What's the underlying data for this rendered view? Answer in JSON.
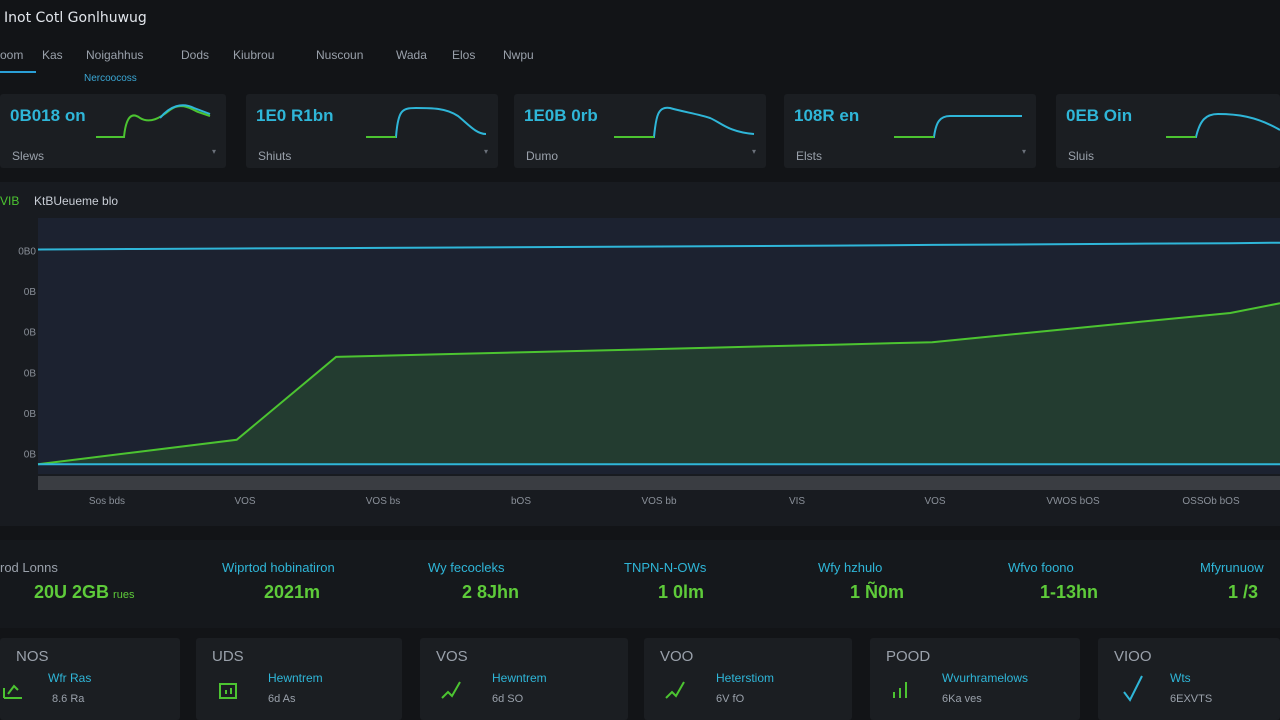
{
  "app": {
    "title": "Inot Cotl Gonlhuwug"
  },
  "nav": {
    "items": [
      "oom",
      "Kas",
      "Noigahhus",
      "Dods",
      "Kiubrou",
      "Nuscoun",
      "Wada",
      "Elos",
      "Nwpu"
    ],
    "sub_label": "Nercoocoss"
  },
  "kpis": [
    {
      "value": "0B018 on",
      "label": "Slews"
    },
    {
      "value": "1E0 R1bn",
      "label": "Shiuts"
    },
    {
      "value": "1E0B 0rb",
      "label": "Dumo"
    },
    {
      "value": "108R en",
      "label": "Elsts"
    },
    {
      "value": "0EB Oin",
      "label": "Sluis"
    }
  ],
  "chart": {
    "legend_tag": "VIB",
    "heading": "KtBUeueme blo"
  },
  "chart_data": {
    "type": "line",
    "title": "KtBUeueme blo",
    "xlabel": "",
    "ylabel": "",
    "y_tick_labels": [
      "0B0",
      "0B",
      "0B",
      "0B",
      "0B",
      "0B"
    ],
    "x_tick_labels": [
      "Sos bds",
      "VOS",
      "VOS bs",
      "bOS",
      "VOS bb",
      "VIS",
      "VOS",
      "VWOS bOS",
      "OSSOb bOS"
    ],
    "ylim": [
      0,
      100
    ],
    "legend": "top-left",
    "grid": false,
    "x": [
      0,
      8,
      16,
      24,
      32,
      40,
      48,
      56,
      64,
      72,
      80,
      88,
      96,
      100
    ],
    "series": [
      {
        "name": "",
        "color": "#2fb6d8",
        "values": [
          92,
          92.2,
          92.4,
          92.6,
          92.8,
          93,
          93.2,
          93.4,
          93.6,
          93.9,
          94.1,
          94.4,
          94.6,
          94.8
        ]
      },
      {
        "name": "",
        "color": "#4cc431",
        "values": [
          4,
          9,
          14,
          48,
          49,
          50,
          51,
          52,
          53,
          54,
          58,
          62,
          66,
          70
        ]
      },
      {
        "name": "",
        "color": "#2fb6d8",
        "values": [
          4,
          4,
          4,
          4,
          4,
          4,
          4,
          4,
          4,
          4,
          4,
          4,
          4,
          4
        ]
      }
    ]
  },
  "stats": [
    {
      "label": "rod Lonns",
      "value": "20U 2GB",
      "unit": "rues"
    },
    {
      "label": "Wiprtod hobinatiron",
      "value": "2021m",
      "unit": ""
    },
    {
      "label": "Wy fecocleks",
      "value": "2 8Jhn",
      "unit": ""
    },
    {
      "label": "TNPN-N-OWs",
      "value": "1 0lm",
      "unit": ""
    },
    {
      "label": "Wfy hzhulo",
      "value": "1 Ñ0m",
      "unit": ""
    },
    {
      "label": "Wfvo foono",
      "value": "1-13hn",
      "unit": ""
    },
    {
      "label": "Mfyrunuow",
      "value": "1 /3",
      "unit": ""
    }
  ],
  "bottom_cards": [
    {
      "code": "NOS",
      "name": "Wfr Ras",
      "sub": "8.6 Ra"
    },
    {
      "code": "UDS",
      "name": "Hewntrem",
      "sub": "6d As"
    },
    {
      "code": "VOS",
      "name": "Hewntrem",
      "sub": "6d SO"
    },
    {
      "code": "VOO",
      "name": "Heterstiom",
      "sub": "6V fO"
    },
    {
      "code": "POOD",
      "name": "Wvurhramelows",
      "sub": "6Ka ves"
    },
    {
      "code": "VIOO",
      "name": "Wts",
      "sub": "6EXVTS"
    }
  ],
  "colors": {
    "accent_cyan": "#2fb6d8",
    "accent_green": "#4cc431",
    "background": "#121417",
    "panel": "#1b1e22"
  }
}
